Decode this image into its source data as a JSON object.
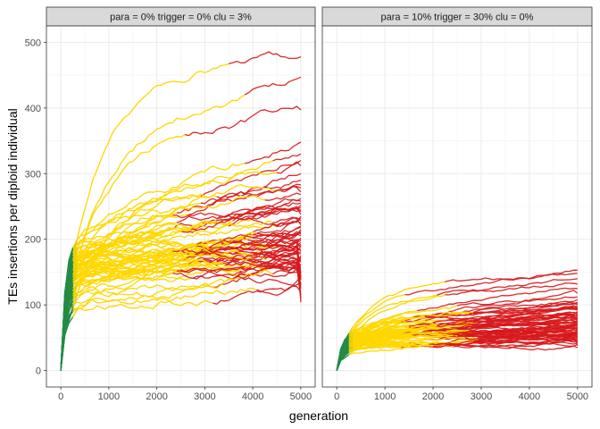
{
  "chart_data": {
    "type": "line",
    "xlabel": "generation",
    "ylabel": "TEs insertions per diploid individual",
    "xlim": [
      -300,
      5300
    ],
    "ylim": [
      -25,
      525
    ],
    "x_ticks": [
      "0",
      "1000",
      "2000",
      "3000",
      "4000",
      "5000"
    ],
    "y_ticks": [
      "0",
      "100",
      "200",
      "300",
      "400",
      "500"
    ],
    "colors": {
      "early": "#238b45",
      "mid": "#ffd700",
      "late": "#d7191c"
    },
    "grid": true,
    "panels": [
      {
        "strip_label": "para = 0% trigger = 0% clu = 3%",
        "replicate_endpoints": [
          478,
          447,
          397,
          348,
          330,
          320,
          312,
          300,
          290,
          283,
          278,
          272,
          268,
          262,
          258,
          255,
          252,
          248,
          245,
          242,
          238,
          235,
          232,
          228,
          225,
          222,
          220,
          218,
          215,
          212,
          210,
          208,
          205,
          202,
          200,
          198,
          195,
          192,
          190,
          188,
          185,
          182,
          180,
          178,
          175,
          172,
          170,
          168,
          165,
          162,
          160,
          158,
          155,
          152,
          150,
          148,
          145,
          142,
          140,
          138,
          135,
          132,
          130,
          125,
          120,
          115,
          110,
          104
        ]
      },
      {
        "strip_label": "para = 10% trigger = 30% clu = 0%",
        "replicate_endpoints": [
          153,
          148,
          140,
          132,
          125,
          118,
          112,
          108,
          104,
          102,
          100,
          98,
          96,
          95,
          94,
          93,
          92,
          90,
          88,
          87,
          86,
          85,
          84,
          83,
          82,
          81,
          80,
          79,
          78,
          77,
          76,
          75,
          74,
          73,
          72,
          71,
          70,
          69,
          68,
          67,
          66,
          65,
          64,
          63,
          62,
          61,
          60,
          59,
          58,
          57,
          56,
          55,
          54,
          53,
          52,
          51,
          50,
          49,
          48,
          47,
          46,
          45,
          44,
          43,
          42,
          40,
          38,
          35
        ]
      }
    ]
  }
}
